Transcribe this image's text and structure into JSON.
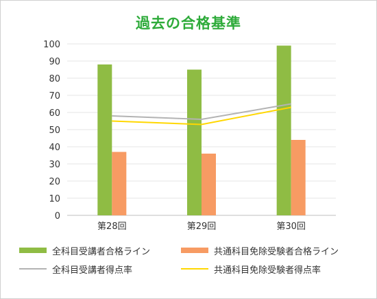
{
  "chart_data": {
    "type": "bar",
    "title": "過去の合格基準",
    "categories": [
      "第28回",
      "第29回",
      "第30回"
    ],
    "ylim": [
      0,
      100
    ],
    "yticks": [
      0,
      10,
      20,
      30,
      40,
      50,
      60,
      70,
      80,
      90,
      100
    ],
    "grid": true,
    "legend_position": "bottom",
    "series": [
      {
        "name": "全科目受講者合格ライン",
        "kind": "bar",
        "color": "#8fbc44",
        "values": [
          88,
          85,
          99
        ]
      },
      {
        "name": "共通科目免除受験者合格ライン",
        "kind": "bar",
        "color": "#f79b63",
        "values": [
          37,
          36,
          44
        ]
      },
      {
        "name": "全科目受講者得点率",
        "kind": "line",
        "color": "#b3b3b3",
        "values": [
          58,
          56,
          65
        ]
      },
      {
        "name": "共通科目免除受験者得点率",
        "kind": "line",
        "color": "#ffd700",
        "values": [
          55,
          53,
          63
        ]
      }
    ]
  }
}
